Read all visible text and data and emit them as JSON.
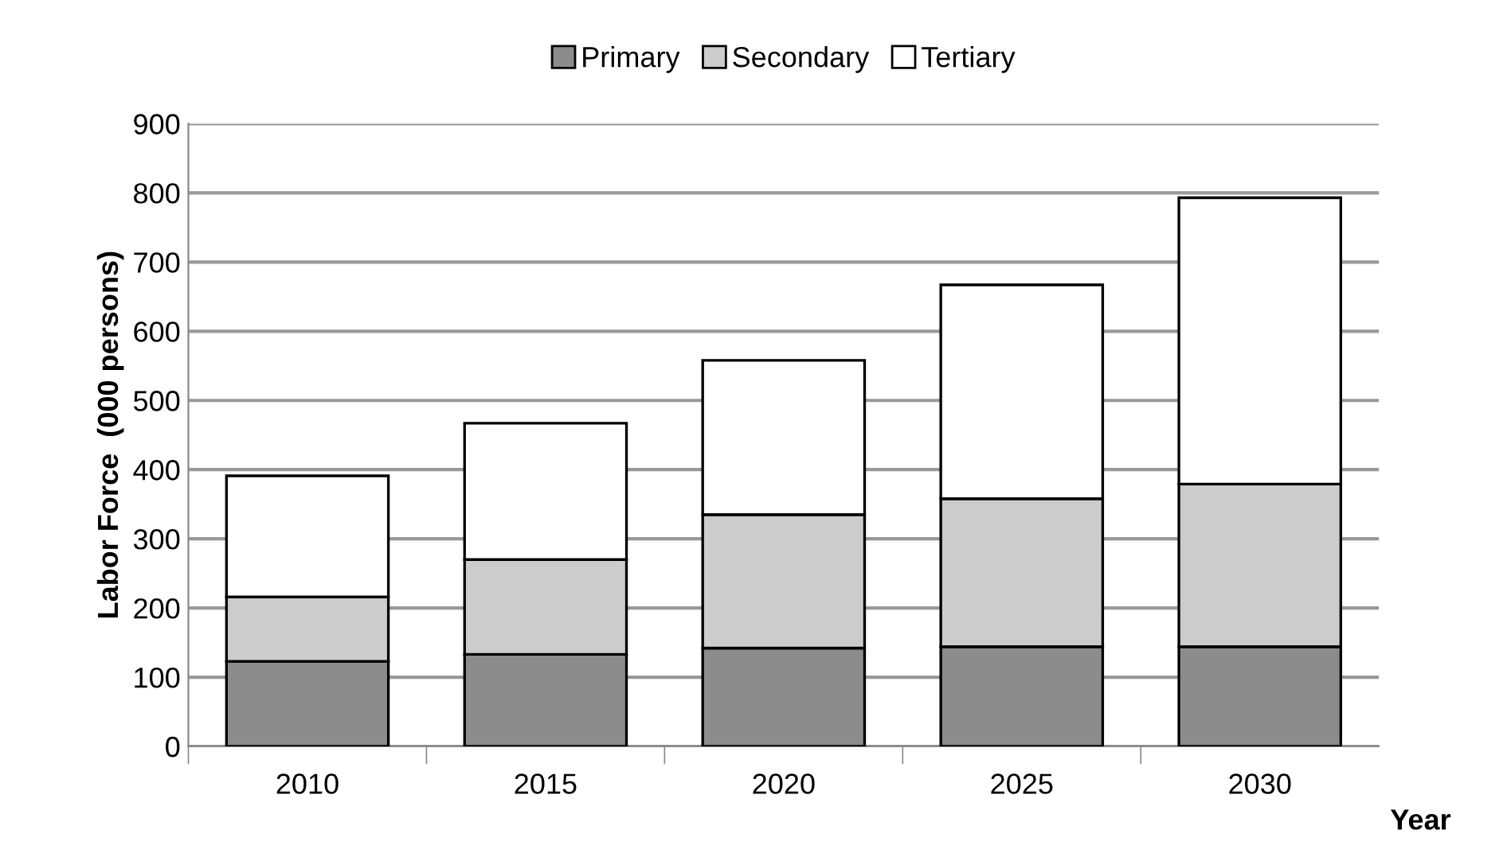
{
  "chart_data": {
    "type": "bar",
    "stacked": true,
    "xlabel": "Year",
    "ylabel": "Labor Force  (000 persons)",
    "categories": [
      "2010",
      "2015",
      "2020",
      "2025",
      "2030"
    ],
    "series": [
      {
        "name": "Primary",
        "color": "#8c8c8c",
        "values": [
          123,
          133,
          142,
          144,
          144
        ]
      },
      {
        "name": "Secondary",
        "color": "#cccccc",
        "values": [
          93,
          137,
          193,
          214,
          235
        ]
      },
      {
        "name": "Tertiary",
        "color": "#ffffff",
        "values": [
          175,
          197,
          223,
          309,
          414
        ]
      }
    ],
    "ylim": [
      0,
      900
    ],
    "yticks": [
      0,
      100,
      200,
      300,
      400,
      500,
      600,
      700,
      800,
      900
    ],
    "grid": "y",
    "legend": "top"
  }
}
